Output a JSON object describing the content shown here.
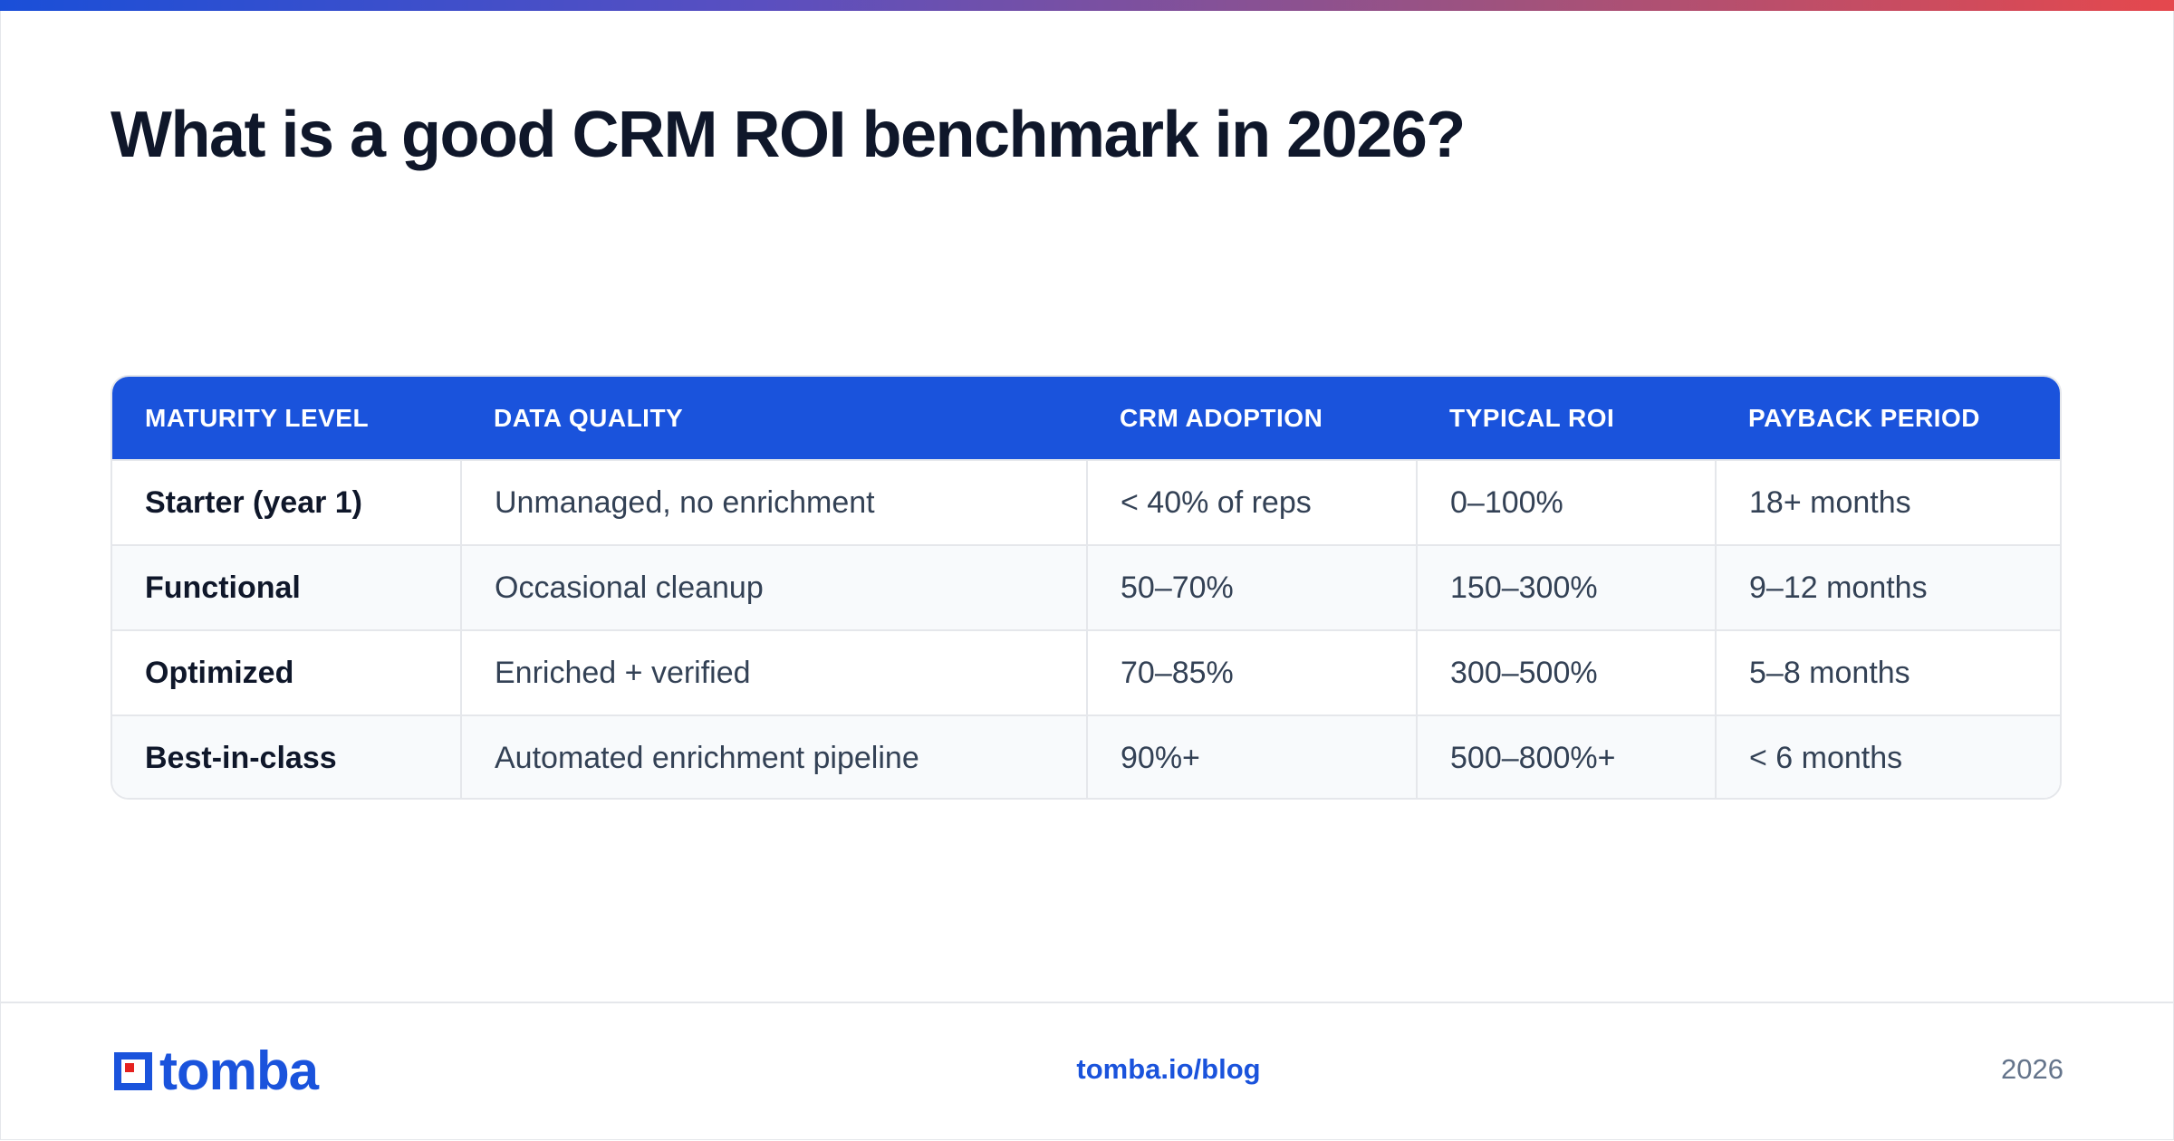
{
  "title": "What is a good CRM ROI benchmark in 2026?",
  "table": {
    "headers": [
      "MATURITY LEVEL",
      "DATA QUALITY",
      "CRM ADOPTION",
      "TYPICAL ROI",
      "PAYBACK PERIOD"
    ],
    "rows": [
      {
        "level": "Starter (year 1)",
        "quality": "Unmanaged, no enrichment",
        "adoption": "< 40% of reps",
        "roi": "0–100%",
        "payback": "18+ months"
      },
      {
        "level": "Functional",
        "quality": "Occasional cleanup",
        "adoption": "50–70%",
        "roi": "150–300%",
        "payback": "9–12 months"
      },
      {
        "level": "Optimized",
        "quality": "Enriched + verified",
        "adoption": "70–85%",
        "roi": "300–500%",
        "payback": "5–8 months"
      },
      {
        "level": "Best-in-class",
        "quality": "Automated enrichment pipeline",
        "adoption": "90%+",
        "roi": "500–800%+",
        "payback": "< 6 months"
      }
    ]
  },
  "footer": {
    "logo_text": "tomba",
    "url": "tomba.io/blog",
    "year": "2026"
  },
  "colors": {
    "accent": "#1a53dc",
    "logo_red": "#e5211f",
    "gradient_start": "#1a4fd8",
    "gradient_end": "#e5484d"
  }
}
